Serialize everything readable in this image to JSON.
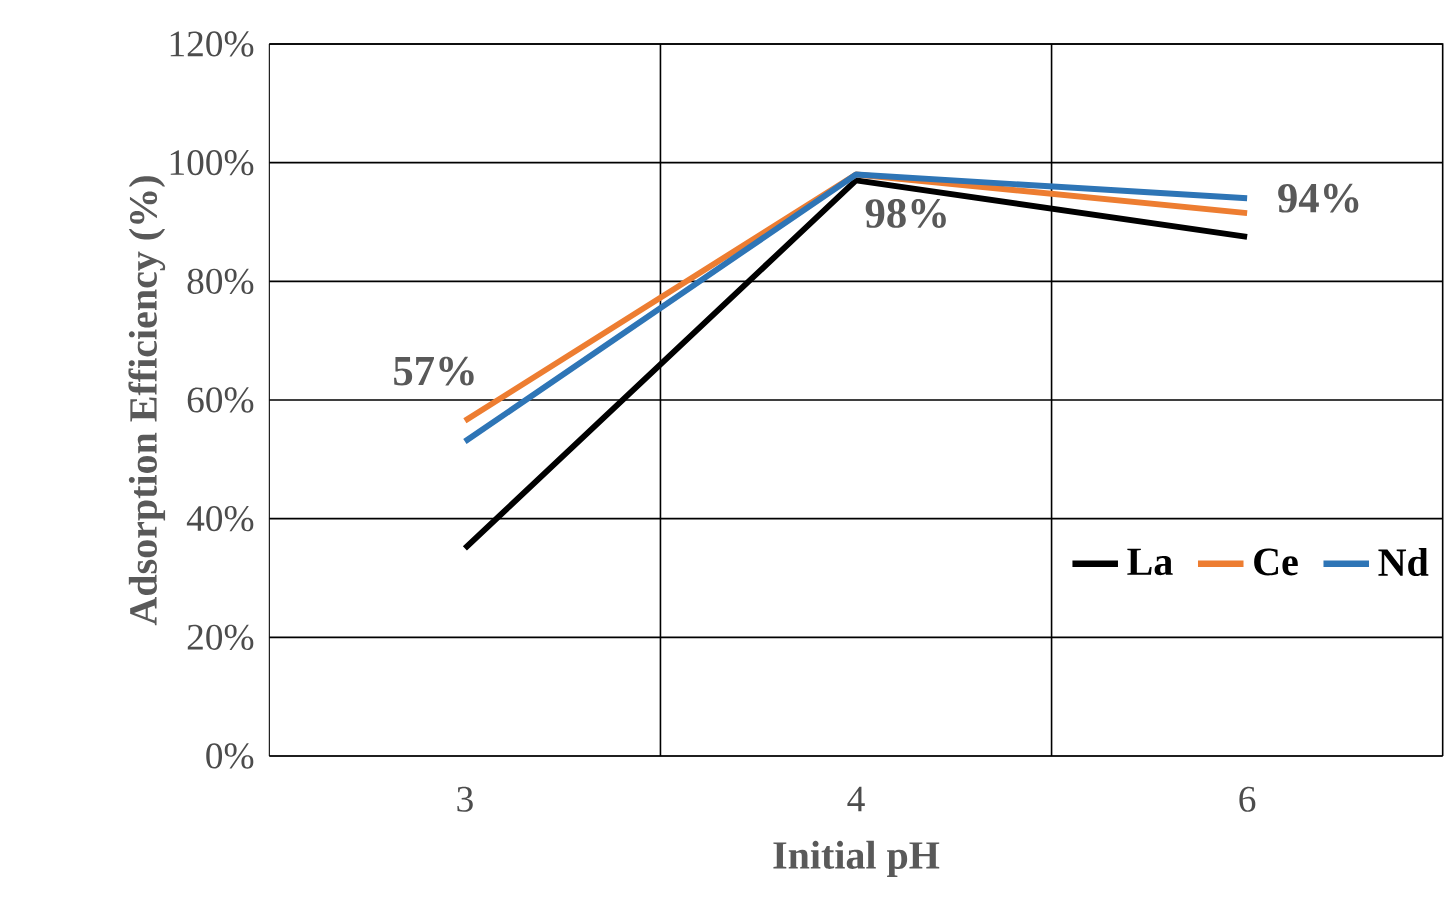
{
  "chart_data": {
    "type": "line",
    "xlabel": "Initial pH",
    "ylabel": "Adsorption Efficiency (%)",
    "categories": [
      "3",
      "4",
      "6"
    ],
    "series": [
      {
        "name": "La",
        "color": "#000000",
        "values": [
          0.35,
          0.97,
          0.875
        ]
      },
      {
        "name": "Ce",
        "color": "#ed7d31",
        "values": [
          0.565,
          0.98,
          0.915
        ]
      },
      {
        "name": "Nd",
        "color": "#2e75b6",
        "values": [
          0.53,
          0.98,
          0.94
        ]
      }
    ],
    "ylim": [
      0,
      1.2
    ],
    "yticks": [
      {
        "value": 0,
        "label": "0%"
      },
      {
        "value": 0.2,
        "label": "20%"
      },
      {
        "value": 0.4,
        "label": "40%"
      },
      {
        "value": 0.6,
        "label": "60%"
      },
      {
        "value": 0.8,
        "label": "80%"
      },
      {
        "value": 1.0,
        "label": "100%"
      },
      {
        "value": 1.2,
        "label": "120%"
      }
    ],
    "grid": true,
    "legend": "bottom right",
    "marker": "none",
    "line_style": "solid",
    "annotations": [
      {
        "text": "57%",
        "x": "3",
        "y": 0.565
      },
      {
        "text": "98%",
        "x": "4",
        "y": 0.98
      },
      {
        "text": "94%",
        "x": "6",
        "y": 0.94
      }
    ]
  }
}
